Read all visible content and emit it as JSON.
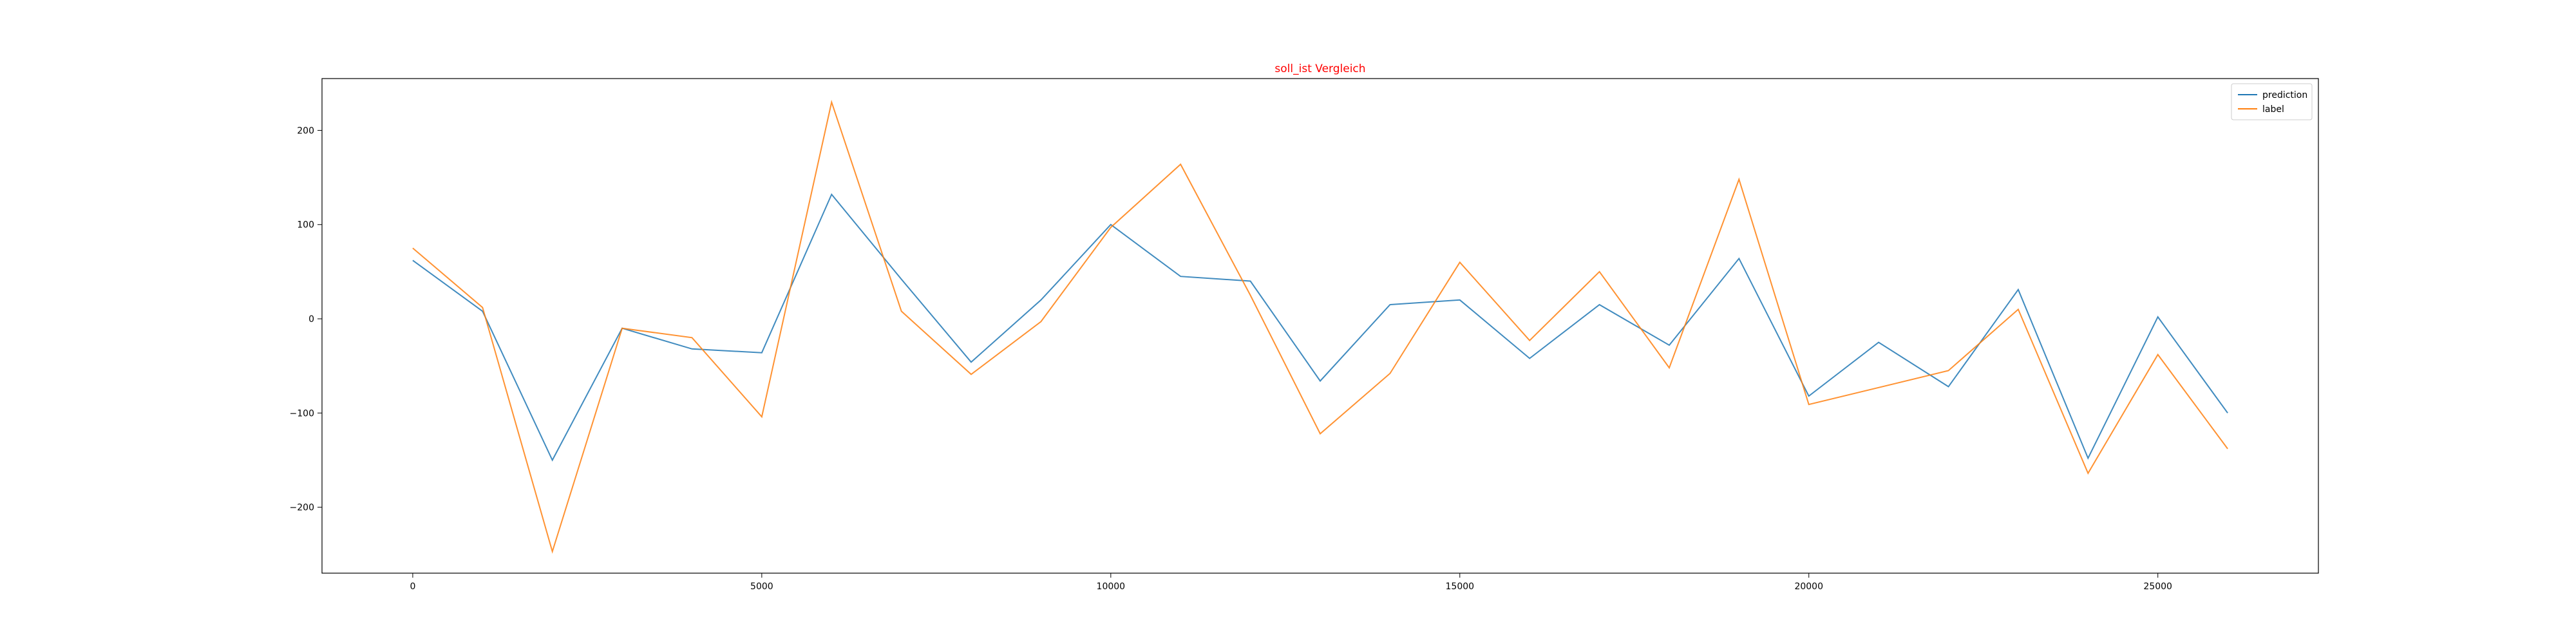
{
  "chart_data": {
    "type": "line",
    "title": "soll_ist Vergleich",
    "title_color": "#ff0000",
    "xlabel": "",
    "ylabel": "",
    "xlim": [
      -1300,
      27300
    ],
    "ylim": [
      -270,
      255
    ],
    "xticks": [
      0,
      5000,
      10000,
      15000,
      20000,
      25000
    ],
    "yticks": [
      -200,
      -100,
      0,
      100,
      200
    ],
    "grid": false,
    "legend_position": "top-right",
    "x": [
      0,
      1000,
      2000,
      3000,
      4000,
      5000,
      6000,
      7000,
      8000,
      9000,
      10000,
      11000,
      12000,
      13000,
      14000,
      15000,
      16000,
      17000,
      18000,
      19000,
      20000,
      21000,
      22000,
      23000,
      24000,
      25000,
      26000
    ],
    "series": [
      {
        "name": "prediction",
        "color": "#1f77b4",
        "values": [
          62,
          8,
          -150,
          -10,
          -32,
          -36,
          132,
          42,
          -46,
          20,
          100,
          45,
          40,
          -66,
          15,
          20,
          -42,
          15,
          -28,
          64,
          -82,
          -25,
          -72,
          31,
          -148,
          2,
          -100
        ]
      },
      {
        "name": "label",
        "color": "#ff7f0e",
        "values": [
          75,
          12,
          -247,
          -10,
          -20,
          -104,
          230,
          8,
          -59,
          -3,
          97,
          164,
          25,
          -122,
          -58,
          60,
          -23,
          50,
          -52,
          148,
          -91,
          -73,
          -55,
          10,
          -164,
          -38,
          -138
        ]
      }
    ]
  }
}
